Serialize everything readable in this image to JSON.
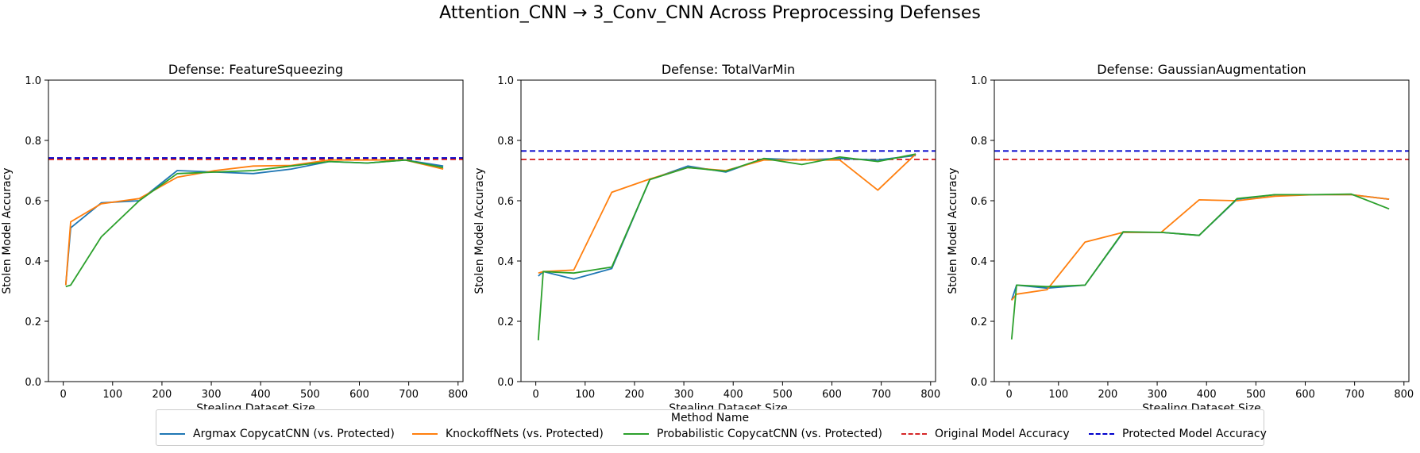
{
  "figure": {
    "suptitle": "Attention_CNN → 3_Conv_CNN Across Preprocessing Defenses",
    "legend_title": "Method Name",
    "legend": [
      {
        "label": "Argmax CopycatCNN (vs. Protected)",
        "color": "#1f77b4",
        "style": "solid"
      },
      {
        "label": "KnockoffNets (vs. Protected)",
        "color": "#ff7f0e",
        "style": "solid"
      },
      {
        "label": "Probabilistic CopycatCNN (vs. Protected)",
        "color": "#2ca02c",
        "style": "solid"
      },
      {
        "label": "Original Model Accuracy",
        "color": "#d62728",
        "style": "dashed"
      },
      {
        "label": "Protected Model Accuracy",
        "color": "#0000cc",
        "style": "dashed"
      }
    ]
  },
  "chart_data": [
    {
      "type": "line",
      "title": "Defense: FeatureSqueezing",
      "xlabel": "Stealing Dataset Size",
      "ylabel": "Stolen Model Accuracy",
      "xlim": [
        -30,
        810
      ],
      "ylim": [
        0,
        1
      ],
      "xticks": [
        0,
        100,
        200,
        300,
        400,
        500,
        600,
        700,
        800
      ],
      "yticks": [
        0.0,
        0.2,
        0.4,
        0.6,
        0.8,
        1.0
      ],
      "grid": false,
      "series": [
        {
          "name": "Argmax CopycatCNN (vs. Protected)",
          "color": "#1f77b4",
          "x": [
            5,
            15,
            77,
            154,
            231,
            308,
            385,
            462,
            539,
            616,
            693,
            770
          ],
          "y": [
            0.32,
            0.51,
            0.593,
            0.6,
            0.7,
            0.695,
            0.69,
            0.705,
            0.73,
            0.725,
            0.735,
            0.715
          ]
        },
        {
          "name": "KnockoffNets (vs. Protected)",
          "color": "#ff7f0e",
          "x": [
            5,
            15,
            77,
            154,
            231,
            308,
            385,
            462,
            539,
            616,
            693,
            770
          ],
          "y": [
            0.32,
            0.53,
            0.59,
            0.607,
            0.678,
            0.7,
            0.715,
            0.717,
            0.735,
            0.735,
            0.735,
            0.705
          ]
        },
        {
          "name": "Probabilistic CopycatCNN (vs. Protected)",
          "color": "#2ca02c",
          "x": [
            5,
            15,
            77,
            154,
            231,
            308,
            385,
            462,
            539,
            616,
            693,
            770
          ],
          "y": [
            0.315,
            0.32,
            0.48,
            0.6,
            0.69,
            0.695,
            0.7,
            0.715,
            0.73,
            0.725,
            0.735,
            0.71
          ]
        }
      ],
      "hlines": [
        {
          "name": "Original Model Accuracy",
          "y": 0.737,
          "color": "#d62728"
        },
        {
          "name": "Protected Model Accuracy",
          "y": 0.742,
          "color": "#0000cc"
        }
      ]
    },
    {
      "type": "line",
      "title": "Defense: TotalVarMin",
      "xlabel": "Stealing Dataset Size",
      "ylabel": "Stolen Model Accuracy",
      "xlim": [
        -30,
        810
      ],
      "ylim": [
        0,
        1
      ],
      "xticks": [
        0,
        100,
        200,
        300,
        400,
        500,
        600,
        700,
        800
      ],
      "yticks": [
        0.0,
        0.2,
        0.4,
        0.6,
        0.8,
        1.0
      ],
      "grid": false,
      "series": [
        {
          "name": "Argmax CopycatCNN (vs. Protected)",
          "color": "#1f77b4",
          "x": [
            5,
            15,
            77,
            154,
            231,
            308,
            385,
            462,
            539,
            616,
            693,
            770
          ],
          "y": [
            0.35,
            0.365,
            0.34,
            0.375,
            0.67,
            0.715,
            0.695,
            0.74,
            0.735,
            0.74,
            0.735,
            0.75
          ]
        },
        {
          "name": "KnockoffNets (vs. Protected)",
          "color": "#ff7f0e",
          "x": [
            5,
            15,
            77,
            154,
            231,
            308,
            385,
            462,
            539,
            616,
            693,
            770
          ],
          "y": [
            0.36,
            0.365,
            0.37,
            0.628,
            0.672,
            0.71,
            0.7,
            0.735,
            0.735,
            0.735,
            0.635,
            0.755
          ]
        },
        {
          "name": "Probabilistic CopycatCNN (vs. Protected)",
          "color": "#2ca02c",
          "x": [
            5,
            15,
            77,
            154,
            231,
            308,
            385,
            462,
            539,
            616,
            693,
            770
          ],
          "y": [
            0.137,
            0.365,
            0.36,
            0.38,
            0.67,
            0.71,
            0.698,
            0.74,
            0.72,
            0.745,
            0.73,
            0.755
          ]
        }
      ],
      "hlines": [
        {
          "name": "Original Model Accuracy",
          "y": 0.737,
          "color": "#d62728"
        },
        {
          "name": "Protected Model Accuracy",
          "y": 0.765,
          "color": "#0000cc"
        }
      ]
    },
    {
      "type": "line",
      "title": "Defense: GaussianAugmentation",
      "xlabel": "Stealing Dataset Size",
      "ylabel": "Stolen Model Accuracy",
      "xlim": [
        -30,
        810
      ],
      "ylim": [
        0,
        1
      ],
      "xticks": [
        0,
        100,
        200,
        300,
        400,
        500,
        600,
        700,
        800
      ],
      "yticks": [
        0.0,
        0.2,
        0.4,
        0.6,
        0.8,
        1.0
      ],
      "grid": false,
      "series": [
        {
          "name": "Argmax CopycatCNN (vs. Protected)",
          "color": "#1f77b4",
          "x": [
            5,
            15,
            77,
            154,
            231,
            308,
            385,
            462,
            539,
            616,
            693,
            770
          ],
          "y": [
            0.27,
            0.32,
            0.31,
            0.32,
            0.495,
            0.495,
            0.485,
            0.605,
            0.62,
            0.62,
            0.62,
            0.605
          ]
        },
        {
          "name": "KnockoffNets (vs. Protected)",
          "color": "#ff7f0e",
          "x": [
            5,
            15,
            77,
            154,
            231,
            308,
            385,
            462,
            539,
            616,
            693,
            770
          ],
          "y": [
            0.27,
            0.29,
            0.305,
            0.463,
            0.495,
            0.495,
            0.603,
            0.6,
            0.615,
            0.62,
            0.62,
            0.605
          ]
        },
        {
          "name": "Probabilistic CopycatCNN (vs. Protected)",
          "color": "#2ca02c",
          "x": [
            5,
            15,
            77,
            154,
            231,
            308,
            385,
            462,
            539,
            616,
            693,
            770
          ],
          "y": [
            0.14,
            0.32,
            0.315,
            0.32,
            0.497,
            0.495,
            0.485,
            0.607,
            0.62,
            0.62,
            0.622,
            0.573
          ]
        }
      ],
      "hlines": [
        {
          "name": "Original Model Accuracy",
          "y": 0.737,
          "color": "#d62728"
        },
        {
          "name": "Protected Model Accuracy",
          "y": 0.765,
          "color": "#0000cc"
        }
      ]
    }
  ]
}
